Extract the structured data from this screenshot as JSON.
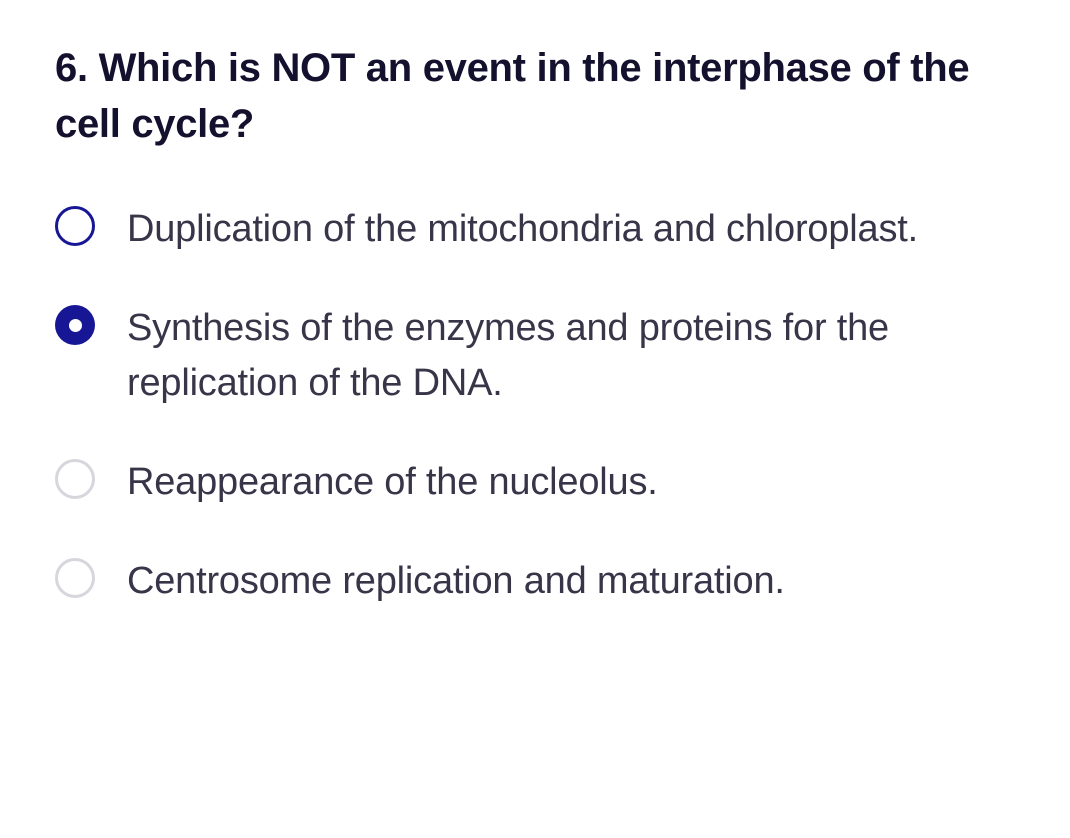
{
  "question": {
    "number": "6.",
    "text": "Which is NOT an event in the interphase of the cell cycle?",
    "title_fontsize": 40,
    "title_fontweight": 700,
    "title_color": "#14112e"
  },
  "options": [
    {
      "label": "Duplication of the mitochondria and chloroplast.",
      "selected": false,
      "radio_style": "unselected-strong",
      "border_color": "#171796"
    },
    {
      "label": "Synthesis of the enzymes and proteins for the replication of the DNA.",
      "selected": true,
      "radio_style": "selected",
      "fill_color": "#171796",
      "dot_color": "#ffffff"
    },
    {
      "label": "Reappearance of the nucleolus.",
      "selected": false,
      "radio_style": "unselected-light",
      "border_color": "#d6d6dc"
    },
    {
      "label": "Centrosome replication and maturation.",
      "selected": false,
      "radio_style": "unselected-light",
      "border_color": "#d6d6dc"
    }
  ],
  "styling": {
    "option_fontsize": 38,
    "option_fontweight": 400,
    "option_color": "#383549",
    "background_color": "#ffffff",
    "radio_diameter": 40,
    "radio_gap": 32,
    "row_gap": 44
  }
}
